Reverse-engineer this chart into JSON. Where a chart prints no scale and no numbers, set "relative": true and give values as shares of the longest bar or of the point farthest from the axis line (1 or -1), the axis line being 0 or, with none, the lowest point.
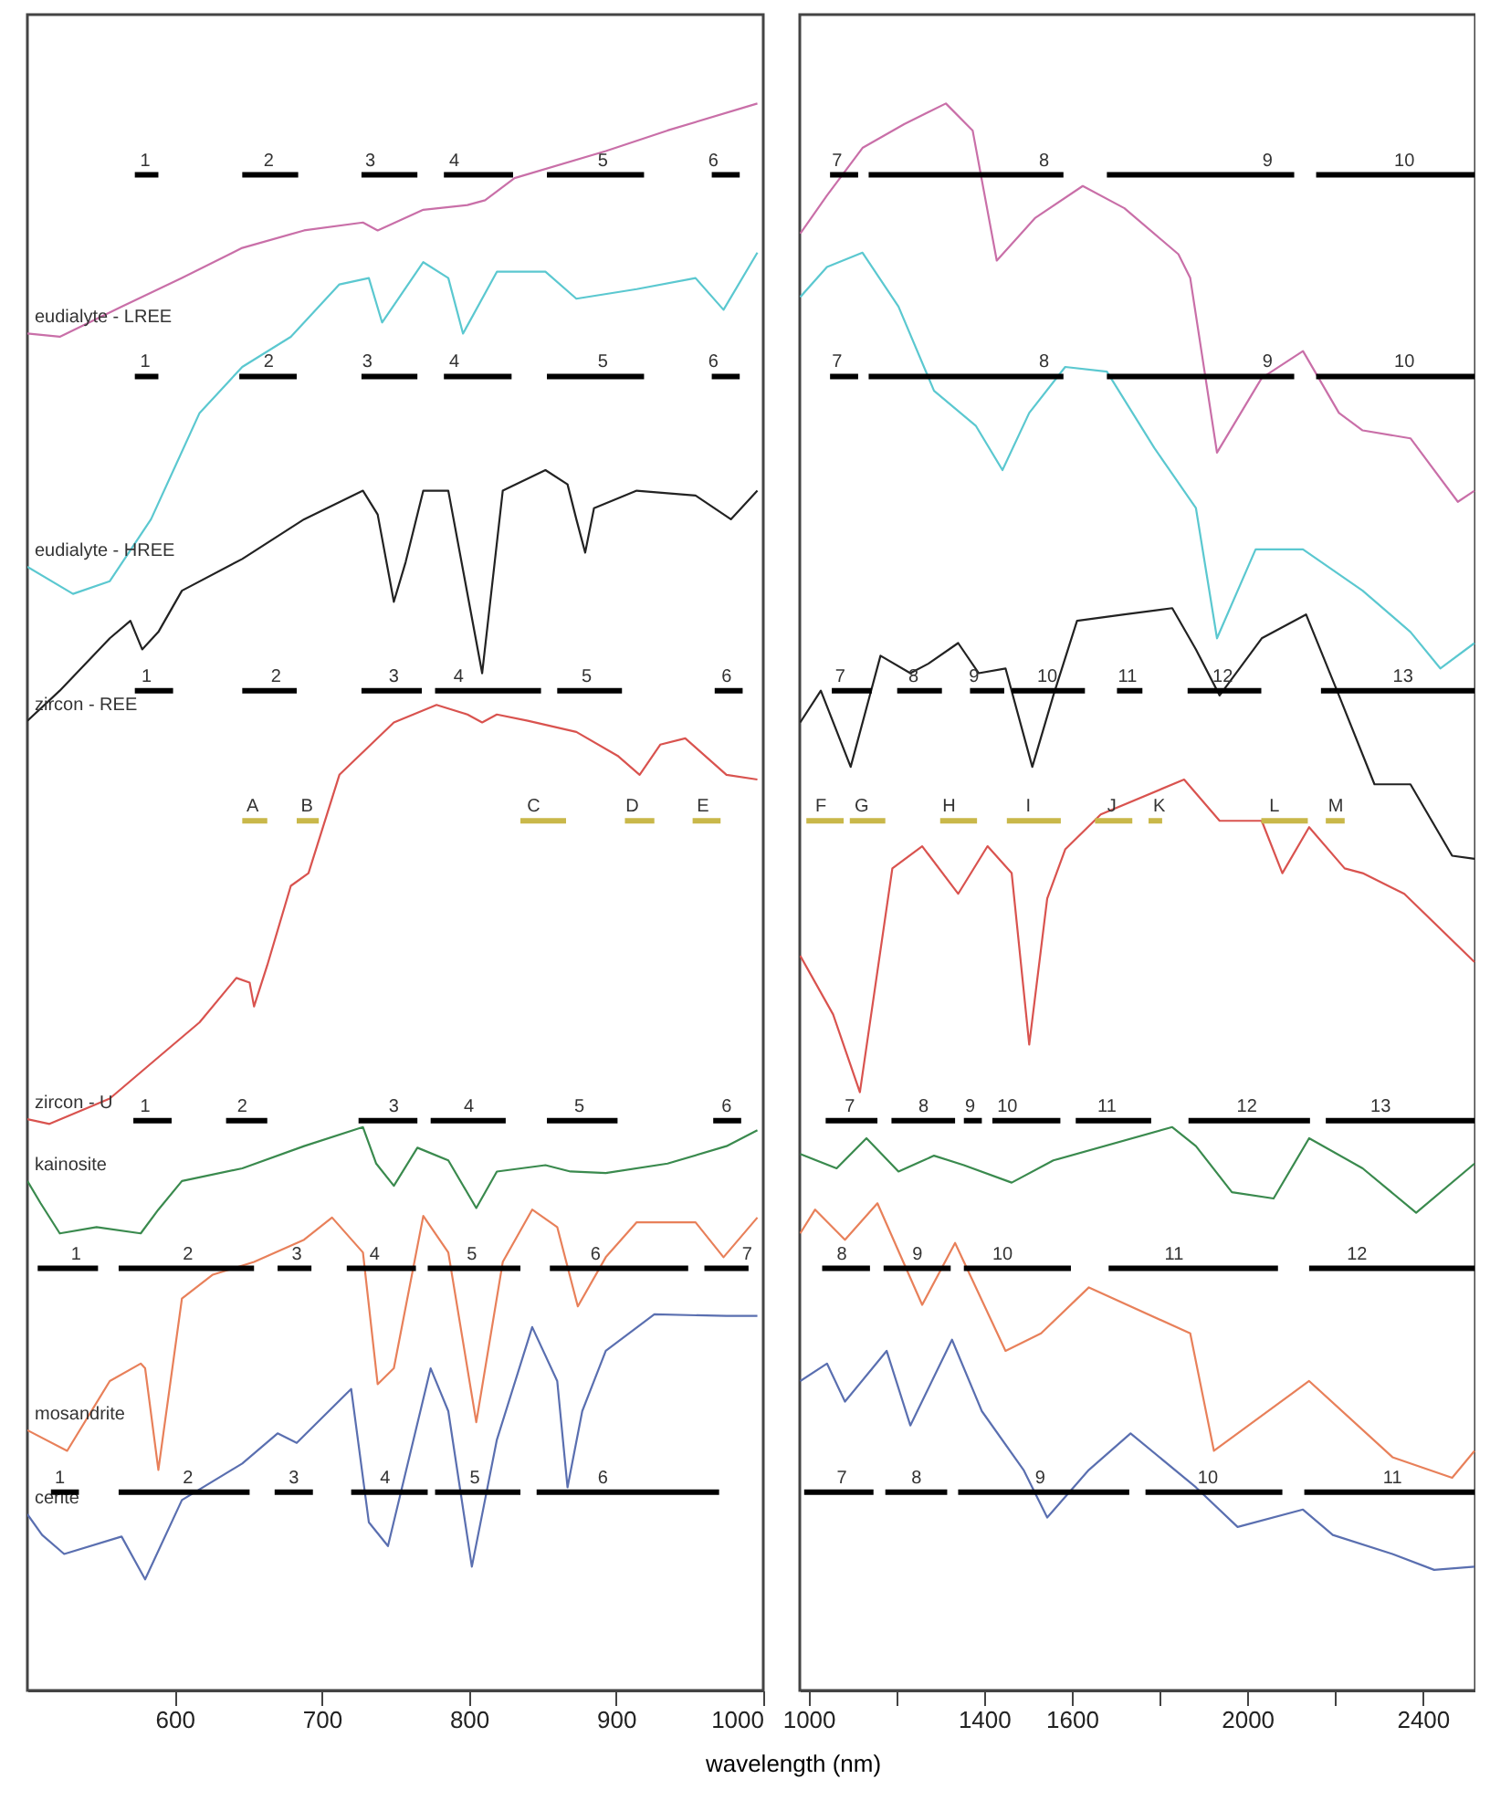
{
  "chart_data": [
    {
      "type": "line",
      "relative": true,
      "xlim": [
        500,
        1000
      ],
      "xticks": [
        600,
        700,
        800,
        900,
        1000
      ],
      "series": [
        {
          "type": "line",
          "name": "eudialyte - LREE",
          "color": "#c96fa8",
          "x": [
            500,
            522,
            564,
            605,
            646,
            688,
            728,
            738,
            769,
            799,
            811,
            831,
            893,
            935,
            996
          ],
          "values": [
            0.855,
            0.853,
            0.872,
            0.89,
            0.909,
            0.92,
            0.925,
            0.92,
            0.933,
            0.936,
            0.939,
            0.953,
            0.97,
            0.983,
            1.0
          ]
        },
        {
          "type": "line",
          "name": "eudialyte - HREE",
          "color": "#5bc8d0",
          "x": [
            500,
            531,
            556,
            584,
            617,
            646,
            679,
            712,
            732,
            741,
            769,
            786,
            796,
            819,
            852,
            873,
            914,
            954,
            973,
            996
          ],
          "values": [
            0.708,
            0.691,
            0.699,
            0.738,
            0.805,
            0.834,
            0.853,
            0.886,
            0.89,
            0.862,
            0.9,
            0.89,
            0.855,
            0.894,
            0.894,
            0.877,
            0.883,
            0.89,
            0.87,
            0.906
          ]
        },
        {
          "type": "line",
          "name": "zircon - REE",
          "color": "#222222",
          "x": [
            500,
            522,
            556,
            570,
            578,
            589,
            605,
            646,
            688,
            728,
            738,
            749,
            757,
            769,
            786,
            809,
            823,
            852,
            867,
            873,
            879,
            885,
            914,
            954,
            978,
            996
          ],
          "values": [
            0.611,
            0.63,
            0.663,
            0.674,
            0.656,
            0.667,
            0.693,
            0.713,
            0.738,
            0.756,
            0.741,
            0.686,
            0.711,
            0.756,
            0.756,
            0.641,
            0.756,
            0.769,
            0.76,
            0.738,
            0.717,
            0.745,
            0.756,
            0.753,
            0.738,
            0.756
          ]
        },
        {
          "type": "line",
          "name": "zircon - U",
          "color": "#d9534f",
          "x": [
            500,
            515,
            556,
            589,
            617,
            642,
            651,
            654,
            663,
            679,
            691,
            712,
            749,
            778,
            799,
            809,
            819,
            840,
            873,
            901,
            916,
            930,
            947,
            975,
            996
          ],
          "values": [
            0.36,
            0.357,
            0.373,
            0.399,
            0.421,
            0.449,
            0.446,
            0.431,
            0.457,
            0.507,
            0.515,
            0.577,
            0.61,
            0.621,
            0.615,
            0.61,
            0.615,
            0.611,
            0.604,
            0.589,
            0.577,
            0.596,
            0.6,
            0.577,
            0.574
          ]
        },
        {
          "type": "line",
          "name": "kainosite",
          "color": "#3a8a4e",
          "x": [
            500,
            509,
            522,
            547,
            577,
            589,
            605,
            646,
            688,
            728,
            737,
            749,
            765,
            786,
            805,
            819,
            852,
            869,
            893,
            935,
            975,
            996
          ],
          "values": [
            0.321,
            0.307,
            0.288,
            0.292,
            0.288,
            0.303,
            0.321,
            0.329,
            0.343,
            0.355,
            0.332,
            0.318,
            0.342,
            0.334,
            0.304,
            0.327,
            0.331,
            0.327,
            0.326,
            0.332,
            0.343,
            0.353
          ]
        },
        {
          "type": "line",
          "name": "mosandrite",
          "color": "#e8805a",
          "x": [
            500,
            527,
            556,
            577,
            580,
            589,
            605,
            626,
            654,
            688,
            707,
            728,
            738,
            749,
            769,
            786,
            805,
            823,
            843,
            860,
            874,
            893,
            914,
            954,
            973,
            996
          ],
          "values": [
            0.164,
            0.151,
            0.195,
            0.206,
            0.203,
            0.139,
            0.247,
            0.262,
            0.27,
            0.284,
            0.298,
            0.276,
            0.193,
            0.203,
            0.299,
            0.276,
            0.169,
            0.27,
            0.303,
            0.292,
            0.242,
            0.273,
            0.295,
            0.295,
            0.273,
            0.298
          ]
        },
        {
          "type": "line",
          "name": "cerite",
          "color": "#5a6fb0",
          "x": [
            500,
            510,
            525,
            564,
            580,
            605,
            646,
            670,
            683,
            720,
            732,
            745,
            774,
            786,
            802,
            819,
            843,
            860,
            867,
            877,
            893,
            926,
            975,
            996
          ],
          "values": [
            0.111,
            0.098,
            0.086,
            0.097,
            0.07,
            0.12,
            0.143,
            0.162,
            0.156,
            0.19,
            0.106,
            0.091,
            0.203,
            0.176,
            0.078,
            0.158,
            0.229,
            0.195,
            0.128,
            0.176,
            0.214,
            0.237,
            0.236,
            0.236
          ]
        },
        {
          "type": "line",
          "color": "#000000",
          "x": [
            573,
            589,
            null,
            646,
            684,
            null,
            727,
            765,
            null,
            783,
            830,
            null,
            853,
            919,
            null,
            965,
            984
          ],
          "values": [
            0.955,
            0.955,
            null,
            0.955,
            0.955,
            null,
            0.955,
            0.955,
            null,
            0.955,
            0.955,
            null,
            0.955,
            0.955,
            null,
            0.955,
            0.955
          ]
        },
        {
          "type": "line",
          "color": "#000000",
          "x": [
            573,
            589,
            null,
            644,
            683,
            null,
            727,
            765,
            null,
            783,
            829,
            null,
            853,
            919,
            null,
            965,
            984
          ],
          "values": [
            0.828,
            0.828,
            null,
            0.828,
            0.828,
            null,
            0.828,
            0.828,
            null,
            0.828,
            0.828,
            null,
            0.828,
            0.828,
            null,
            0.828,
            0.828
          ]
        },
        {
          "type": "line",
          "color": "#000000",
          "x": [
            573,
            599,
            null,
            646,
            683,
            null,
            727,
            768,
            null,
            777,
            849,
            null,
            860,
            904,
            null,
            967,
            986
          ],
          "values": [
            0.63,
            0.63,
            null,
            0.63,
            0.63,
            null,
            0.63,
            0.63,
            null,
            0.63,
            0.63,
            null,
            0.63,
            0.63,
            null,
            0.63,
            0.63
          ]
        },
        {
          "type": "line",
          "color": "#c9b84a",
          "x": [
            646,
            663,
            null,
            683,
            698,
            null,
            835,
            866,
            null,
            906,
            926,
            null,
            952,
            971
          ],
          "values": [
            0.548,
            0.548,
            null,
            0.548,
            0.548,
            null,
            0.548,
            0.548,
            null,
            0.548,
            0.548,
            null,
            0.548,
            0.548
          ]
        },
        {
          "type": "line",
          "color": "#000000",
          "x": [
            572,
            598,
            null,
            635,
            663,
            null,
            725,
            765,
            null,
            774,
            825,
            null,
            853,
            901,
            null,
            966,
            985
          ],
          "values": [
            0.359,
            0.359,
            null,
            0.359,
            0.359,
            null,
            0.359,
            0.359,
            null,
            0.359,
            0.359,
            null,
            0.359,
            0.359,
            null,
            0.359,
            0.359
          ]
        },
        {
          "type": "line",
          "color": "#000000",
          "x": [
            507,
            548,
            null,
            562,
            654,
            null,
            670,
            693,
            null,
            717,
            764,
            null,
            772,
            835,
            null,
            855,
            949,
            null,
            960,
            990
          ],
          "values": [
            0.266,
            0.266,
            null,
            0.266,
            0.266,
            null,
            0.266,
            0.266,
            null,
            0.266,
            0.266,
            null,
            0.266,
            0.266,
            null,
            0.266,
            0.266,
            null,
            0.266,
            0.266
          ]
        },
        {
          "type": "line",
          "color": "#000000",
          "x": [
            516,
            535,
            null,
            562,
            651,
            null,
            668,
            694,
            null,
            720,
            772,
            null,
            777,
            835,
            null,
            846,
            970
          ],
          "values": [
            0.125,
            0.125,
            null,
            0.125,
            0.125,
            null,
            0.125,
            0.125,
            null,
            0.125,
            0.125,
            null,
            0.125,
            0.125,
            null,
            0.125,
            0.125
          ]
        }
      ],
      "annotations": [
        {
          "text": "1",
          "x": 580,
          "y": 0.955
        },
        {
          "text": "2",
          "x": 664,
          "y": 0.955
        },
        {
          "text": "3",
          "x": 733,
          "y": 0.955
        },
        {
          "text": "4",
          "x": 790,
          "y": 0.955
        },
        {
          "text": "5",
          "x": 891,
          "y": 0.955
        },
        {
          "text": "6",
          "x": 966,
          "y": 0.955
        },
        {
          "text": "1",
          "x": 580,
          "y": 0.828
        },
        {
          "text": "2",
          "x": 664,
          "y": 0.828
        },
        {
          "text": "3",
          "x": 731,
          "y": 0.828
        },
        {
          "text": "4",
          "x": 790,
          "y": 0.828
        },
        {
          "text": "5",
          "x": 891,
          "y": 0.828
        },
        {
          "text": "6",
          "x": 966,
          "y": 0.828
        },
        {
          "text": "1",
          "x": 581,
          "y": 0.63
        },
        {
          "text": "2",
          "x": 669,
          "y": 0.63
        },
        {
          "text": "3",
          "x": 749,
          "y": 0.63
        },
        {
          "text": "4",
          "x": 793,
          "y": 0.63
        },
        {
          "text": "5",
          "x": 880,
          "y": 0.63
        },
        {
          "text": "6",
          "x": 975,
          "y": 0.63
        },
        {
          "text": "A",
          "x": 653,
          "y": 0.548
        },
        {
          "text": "B",
          "x": 690,
          "y": 0.548
        },
        {
          "text": "C",
          "x": 844,
          "y": 0.548
        },
        {
          "text": "D",
          "x": 911,
          "y": 0.548
        },
        {
          "text": "E",
          "x": 959,
          "y": 0.548
        },
        {
          "text": "1",
          "x": 580,
          "y": 0.359
        },
        {
          "text": "2",
          "x": 646,
          "y": 0.359
        },
        {
          "text": "3",
          "x": 749,
          "y": 0.359
        },
        {
          "text": "4",
          "x": 800,
          "y": 0.359
        },
        {
          "text": "5",
          "x": 875,
          "y": 0.359
        },
        {
          "text": "6",
          "x": 975,
          "y": 0.359
        },
        {
          "text": "1",
          "x": 533,
          "y": 0.266
        },
        {
          "text": "2",
          "x": 609,
          "y": 0.266
        },
        {
          "text": "3",
          "x": 683,
          "y": 0.266
        },
        {
          "text": "4",
          "x": 736,
          "y": 0.266
        },
        {
          "text": "5",
          "x": 802,
          "y": 0.266
        },
        {
          "text": "6",
          "x": 886,
          "y": 0.266
        },
        {
          "text": "7",
          "x": 989,
          "y": 0.266
        },
        {
          "text": "1",
          "x": 522,
          "y": 0.125
        },
        {
          "text": "2",
          "x": 609,
          "y": 0.125
        },
        {
          "text": "3",
          "x": 681,
          "y": 0.125
        },
        {
          "text": "4",
          "x": 743,
          "y": 0.125
        },
        {
          "text": "5",
          "x": 804,
          "y": 0.125
        },
        {
          "text": "6",
          "x": 891,
          "y": 0.125
        }
      ]
    },
    {
      "type": "line",
      "relative": true,
      "xlim": [
        980,
        2520
      ],
      "xticks": [
        1000,
        {
          "value": 1200,
          "label": null
        },
        1400,
        1600,
        {
          "value": 1800,
          "label": null
        },
        2000,
        {
          "value": 2200,
          "label": null
        },
        2400
      ],
      "xlabel": "wavelength (nm)",
      "series": [
        {
          "type": "line",
          "color": "#c96fa8",
          "x": [
            981,
            1042,
            1123,
            1218,
            1313,
            1374,
            1429,
            1517,
            1625,
            1720,
            1843,
            1870,
            1931,
            2033,
            2127,
            2209,
            2263,
            2372,
            2480,
            2518
          ],
          "values": [
            0.918,
            0.942,
            0.972,
            0.987,
            1.0,
            0.983,
            0.901,
            0.928,
            0.948,
            0.934,
            0.905,
            0.89,
            0.78,
            0.827,
            0.844,
            0.805,
            0.794,
            0.789,
            0.749,
            0.756
          ]
        },
        {
          "type": "line",
          "color": "#5bc8d0",
          "x": [
            981,
            1042,
            1123,
            1205,
            1286,
            1381,
            1442,
            1503,
            1585,
            1680,
            1788,
            1883,
            1931,
            2019,
            2127,
            2263,
            2372,
            2440,
            2518
          ],
          "values": [
            0.878,
            0.897,
            0.906,
            0.872,
            0.819,
            0.797,
            0.769,
            0.805,
            0.834,
            0.831,
            0.783,
            0.745,
            0.663,
            0.719,
            0.719,
            0.693,
            0.667,
            0.644,
            0.66
          ]
        },
        {
          "type": "line",
          "color": "#222222",
          "x": [
            981,
            1028,
            1096,
            1164,
            1232,
            1273,
            1341,
            1388,
            1449,
            1510,
            1558,
            1612,
            1720,
            1829,
            1883,
            1937,
            2033,
            2134,
            2209,
            2290,
            2372,
            2467,
            2518
          ],
          "values": [
            0.61,
            0.63,
            0.582,
            0.652,
            0.641,
            0.647,
            0.66,
            0.641,
            0.644,
            0.582,
            0.627,
            0.674,
            0.678,
            0.682,
            0.656,
            0.627,
            0.663,
            0.678,
            0.627,
            0.571,
            0.571,
            0.526,
            0.524
          ]
        },
        {
          "type": "line",
          "color": "#d9534f",
          "x": [
            981,
            1056,
            1117,
            1191,
            1259,
            1341,
            1408,
            1463,
            1503,
            1544,
            1585,
            1666,
            1856,
            1937,
            2033,
            2080,
            2141,
            2222,
            2263,
            2358,
            2518
          ],
          "values": [
            0.463,
            0.426,
            0.377,
            0.518,
            0.532,
            0.502,
            0.532,
            0.515,
            0.407,
            0.499,
            0.53,
            0.552,
            0.574,
            0.548,
            0.548,
            0.515,
            0.544,
            0.518,
            0.515,
            0.502,
            0.459
          ]
        },
        {
          "type": "line",
          "color": "#3a8a4e",
          "x": [
            981,
            1064,
            1132,
            1205,
            1286,
            1354,
            1463,
            1558,
            1829,
            1883,
            1965,
            2060,
            2141,
            2263,
            2385,
            2518
          ],
          "values": [
            0.338,
            0.329,
            0.348,
            0.327,
            0.337,
            0.331,
            0.32,
            0.334,
            0.355,
            0.343,
            0.314,
            0.31,
            0.348,
            0.329,
            0.301,
            0.332
          ]
        },
        {
          "type": "line",
          "color": "#e8805a",
          "x": [
            981,
            1015,
            1083,
            1157,
            1259,
            1334,
            1449,
            1530,
            1639,
            1870,
            1924,
            2141,
            2331,
            2467,
            2518
          ],
          "values": [
            0.288,
            0.303,
            0.284,
            0.307,
            0.243,
            0.282,
            0.214,
            0.225,
            0.254,
            0.225,
            0.151,
            0.195,
            0.147,
            0.134,
            0.151
          ]
        },
        {
          "type": "line",
          "color": "#5a6fb0",
          "x": [
            981,
            1042,
            1083,
            1178,
            1232,
            1327,
            1395,
            1490,
            1544,
            1639,
            1734,
            1883,
            1978,
            2127,
            2195,
            2331,
            2426,
            2518
          ],
          "values": [
            0.195,
            0.206,
            0.182,
            0.214,
            0.167,
            0.221,
            0.176,
            0.139,
            0.109,
            0.139,
            0.162,
            0.128,
            0.103,
            0.114,
            0.098,
            0.086,
            0.076,
            0.078
          ]
        },
        {
          "type": "line",
          "color": "#000000",
          "x": [
            1049,
            1113,
            null,
            1137,
            1581,
            null,
            1680,
            2107,
            null,
            2157,
            2518
          ],
          "values": [
            0.955,
            0.955,
            null,
            0.955,
            0.955,
            null,
            0.955,
            0.955,
            null,
            0.955,
            0.955
          ]
        },
        {
          "type": "line",
          "color": "#000000",
          "x": [
            1049,
            1113,
            null,
            1137,
            1581,
            null,
            1680,
            2107,
            null,
            2157,
            2518
          ],
          "values": [
            0.828,
            0.828,
            null,
            0.828,
            0.828,
            null,
            0.828,
            0.828,
            null,
            0.828,
            0.828
          ]
        },
        {
          "type": "line",
          "color": "#000000",
          "x": [
            1053,
            1144,
            null,
            1202,
            1304,
            null,
            1368,
            1446,
            null,
            1463,
            1630,
            null,
            1703,
            1761,
            null,
            1864,
            2032,
            null,
            2168,
            2518
          ],
          "values": [
            0.63,
            0.63,
            null,
            0.63,
            0.63,
            null,
            0.63,
            0.63,
            null,
            0.63,
            0.63,
            null,
            0.63,
            0.63,
            null,
            0.63,
            0.63,
            null,
            0.63,
            0.63
          ]
        },
        {
          "type": "line",
          "color": "#c9b84a",
          "x": [
            995,
            1080,
            null,
            1094,
            1175,
            null,
            1300,
            1384,
            null,
            1452,
            1575,
            null,
            1653,
            1738,
            null,
            1775,
            1806,
            null,
            2032,
            2138,
            null,
            2179,
            2222
          ],
          "values": [
            0.548,
            0.548,
            null,
            0.548,
            0.548,
            null,
            0.548,
            0.548,
            null,
            0.548,
            0.548,
            null,
            0.548,
            0.548,
            null,
            0.548,
            0.548,
            null,
            0.548,
            0.548,
            null,
            0.548,
            0.548
          ]
        },
        {
          "type": "line",
          "color": "#000000",
          "x": [
            1039,
            1157,
            null,
            1189,
            1334,
            null,
            1354,
            1395,
            null,
            1419,
            1574,
            null,
            1609,
            1781,
            null,
            1866,
            2143,
            null,
            2179,
            2518
          ],
          "values": [
            0.359,
            0.359,
            null,
            0.359,
            0.359,
            null,
            0.359,
            0.359,
            null,
            0.359,
            0.359,
            null,
            0.359,
            0.359,
            null,
            0.359,
            0.359,
            null,
            0.359,
            0.359
          ]
        },
        {
          "type": "line",
          "color": "#000000",
          "x": [
            1031,
            1140,
            null,
            1171,
            1324,
            null,
            1354,
            1598,
            null,
            1684,
            2070,
            null,
            2141,
            2518
          ],
          "values": [
            0.266,
            0.266,
            null,
            0.266,
            0.266,
            null,
            0.266,
            0.266,
            null,
            0.266,
            0.266,
            null,
            0.266,
            0.266
          ]
        },
        {
          "type": "line",
          "color": "#000000",
          "x": [
            990,
            1148,
            null,
            1175,
            1316,
            null,
            1341,
            1731,
            null,
            1768,
            2080,
            null,
            2130,
            2518
          ],
          "values": [
            0.125,
            0.125,
            null,
            0.125,
            0.125,
            null,
            0.125,
            0.125,
            null,
            0.125,
            0.125,
            null,
            0.125,
            0.125
          ]
        }
      ],
      "annotations": [
        {
          "text": "7",
          "x": 1065,
          "y": 0.955
        },
        {
          "text": "8",
          "x": 1537,
          "y": 0.955
        },
        {
          "text": "9",
          "x": 2046,
          "y": 0.955
        },
        {
          "text": "10",
          "x": 2358,
          "y": 0.955
        },
        {
          "text": "7",
          "x": 1065,
          "y": 0.828
        },
        {
          "text": "8",
          "x": 1537,
          "y": 0.828
        },
        {
          "text": "9",
          "x": 2046,
          "y": 0.828
        },
        {
          "text": "10",
          "x": 2358,
          "y": 0.828
        },
        {
          "text": "7",
          "x": 1072,
          "y": 0.63
        },
        {
          "text": "8",
          "x": 1239,
          "y": 0.63
        },
        {
          "text": "9",
          "x": 1377,
          "y": 0.63
        },
        {
          "text": "10",
          "x": 1544,
          "y": 0.63
        },
        {
          "text": "11",
          "x": 1727,
          "y": 0.63
        },
        {
          "text": "12",
          "x": 1944,
          "y": 0.63
        },
        {
          "text": "13",
          "x": 2355,
          "y": 0.63
        },
        {
          "text": "F",
          "x": 1028,
          "y": 0.548
        },
        {
          "text": "G",
          "x": 1121,
          "y": 0.548
        },
        {
          "text": "H",
          "x": 1320,
          "y": 0.548
        },
        {
          "text": "I",
          "x": 1501,
          "y": 0.548
        },
        {
          "text": "J",
          "x": 1691,
          "y": 0.548
        },
        {
          "text": "K",
          "x": 1799,
          "y": 0.548
        },
        {
          "text": "L",
          "x": 2062,
          "y": 0.548
        },
        {
          "text": "M",
          "x": 2202,
          "y": 0.548
        },
        {
          "text": "7",
          "x": 1094,
          "y": 0.359
        },
        {
          "text": "8",
          "x": 1262,
          "y": 0.359
        },
        {
          "text": "9",
          "x": 1368,
          "y": 0.359
        },
        {
          "text": "10",
          "x": 1453,
          "y": 0.359
        },
        {
          "text": "11",
          "x": 1680,
          "y": 0.359
        },
        {
          "text": "12",
          "x": 1999,
          "y": 0.359
        },
        {
          "text": "13",
          "x": 2304,
          "y": 0.359
        },
        {
          "text": "8",
          "x": 1076,
          "y": 0.266
        },
        {
          "text": "9",
          "x": 1248,
          "y": 0.266
        },
        {
          "text": "10",
          "x": 1442,
          "y": 0.266
        },
        {
          "text": "11",
          "x": 1833,
          "y": 0.266
        },
        {
          "text": "12",
          "x": 2250,
          "y": 0.266
        },
        {
          "text": "7",
          "x": 1076,
          "y": 0.125
        },
        {
          "text": "8",
          "x": 1246,
          "y": 0.125
        },
        {
          "text": "9",
          "x": 1528,
          "y": 0.125
        },
        {
          "text": "10",
          "x": 1910,
          "y": 0.125
        },
        {
          "text": "11",
          "x": 2331,
          "y": 0.125
        }
      ]
    }
  ]
}
